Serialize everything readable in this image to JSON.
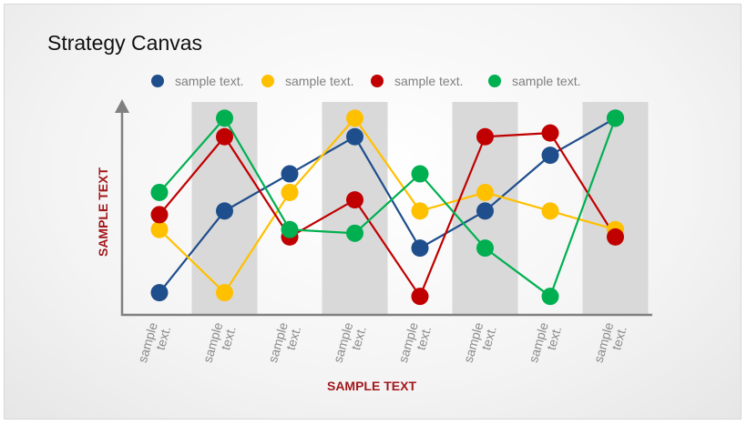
{
  "title": "Strategy Canvas",
  "colors": {
    "blue": "#1f4e8c",
    "yellow": "#ffc000",
    "red": "#c00000",
    "green": "#00b050",
    "band": "#d9d9d9",
    "axis": "#808080",
    "axis_title": "#a3181c"
  },
  "chart_data": {
    "type": "line",
    "title": "Strategy Canvas",
    "xlabel": "SAMPLE TEXT",
    "ylabel": "SAMPLE TEXT",
    "categories": [
      "sample text.",
      "sample text.",
      "sample text.",
      "sample text.",
      "sample text.",
      "sample text.",
      "sample text.",
      "sample text."
    ],
    "ylim": [
      0,
      10
    ],
    "grid": false,
    "legend_position": "top",
    "series": [
      {
        "name": "sample text.",
        "color": "#1f4e8c",
        "values": [
          1.0,
          5.4,
          7.4,
          9.4,
          3.4,
          5.4,
          8.4,
          10.4
        ]
      },
      {
        "name": "sample text.",
        "color": "#ffc000",
        "values": [
          4.4,
          1.0,
          6.4,
          10.4,
          5.4,
          6.4,
          5.4,
          4.4
        ]
      },
      {
        "name": "sample text.",
        "color": "#c00000",
        "values": [
          5.2,
          9.4,
          4.0,
          6.0,
          0.8,
          9.4,
          9.6,
          4.0
        ]
      },
      {
        "name": "sample text.",
        "color": "#00b050",
        "values": [
          6.4,
          10.4,
          4.4,
          4.2,
          7.4,
          3.4,
          0.8,
          10.4
        ]
      }
    ]
  }
}
